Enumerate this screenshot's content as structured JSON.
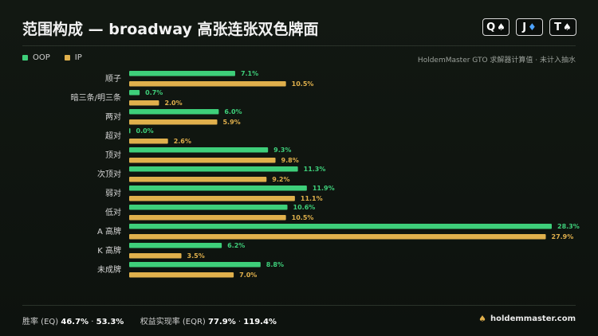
{
  "title": "范围构成 — broadway 高张连张双色牌面",
  "board": [
    {
      "rank": "Q",
      "suit": "♠",
      "suit_color": "#ffffff"
    },
    {
      "rank": "J",
      "suit": "♦",
      "suit_color": "#4da3ff"
    },
    {
      "rank": "T",
      "suit": "♠",
      "suit_color": "#ffffff"
    }
  ],
  "legend": [
    {
      "name": "OOP",
      "color": "#3ecf7a"
    },
    {
      "name": "IP",
      "color": "#e0b04c"
    }
  ],
  "source": "HoldemMaster GTO 求解器计算值 · 未计入抽水",
  "chart_data": {
    "type": "bar",
    "orientation": "horizontal",
    "categories": [
      "顺子",
      "暗三条/明三条",
      "两对",
      "超对",
      "顶对",
      "次顶对",
      "弱对",
      "低对",
      "A 高牌",
      "K 高牌",
      "未成牌"
    ],
    "series": [
      {
        "name": "OOP",
        "color": "#3ecf7a",
        "values": [
          7.1,
          0.7,
          6.0,
          0.0,
          9.3,
          11.3,
          11.9,
          10.6,
          28.3,
          6.2,
          8.8
        ]
      },
      {
        "name": "IP",
        "color": "#e0b04c",
        "values": [
          10.5,
          2.0,
          5.9,
          2.6,
          9.8,
          9.2,
          11.1,
          10.5,
          27.9,
          3.5,
          7.0
        ]
      }
    ],
    "value_suffix": "%",
    "xlim": [
      0,
      28.3
    ],
    "grid": false,
    "legend_position": "top-left"
  },
  "footer": {
    "eq_label": "胜率 (EQ)",
    "eq_oop": "46.7%",
    "eq_ip": "53.3%",
    "eqr_label": "权益实现率 (EQR)",
    "eqr_oop": "77.9%",
    "eqr_ip": "119.4%",
    "separator": "·"
  },
  "brand": "holdemmaster.com"
}
